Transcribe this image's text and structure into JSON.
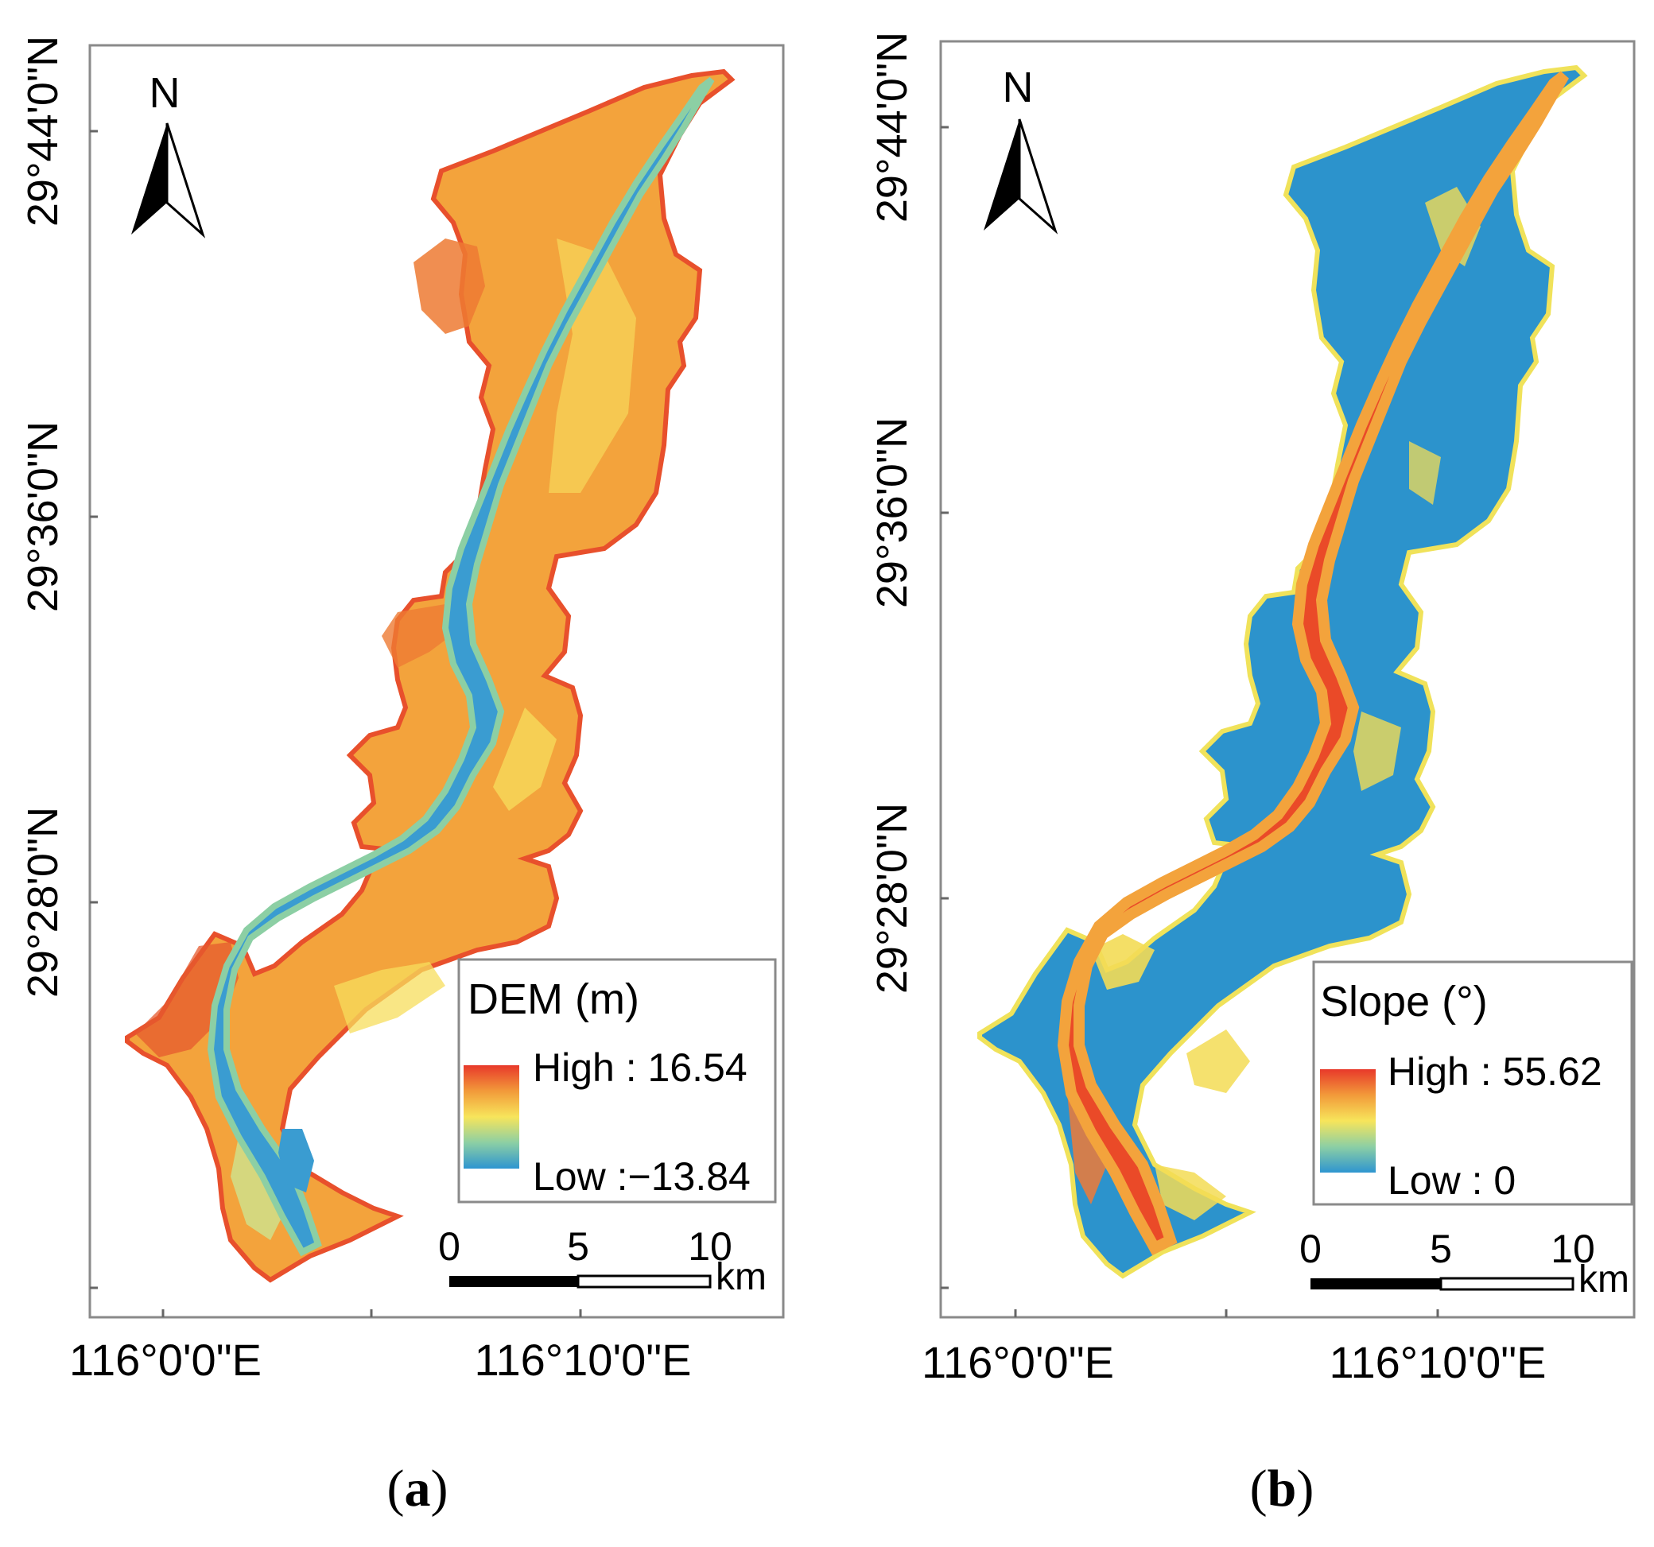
{
  "panels": [
    {
      "id": "a",
      "caption_letter": "a",
      "legend": {
        "title": "DEM (m)",
        "high": "High : 16.54",
        "low": "Low :−13.84"
      },
      "lat_labels": [
        "29°44'0\"N",
        "29°36'0\"N",
        "29°28'0\"N"
      ],
      "lon_labels": [
        "116°0'0\"E",
        "116°10'0\"E"
      ],
      "north_label": "N",
      "scale": {
        "ticks": [
          "0",
          "5",
          "10"
        ],
        "unit": "km"
      },
      "ramp_colors": [
        "#e8392a",
        "#f29a3a",
        "#f7e55b",
        "#8ccfa4",
        "#2e95d0"
      ],
      "land_color": "#f3a33c",
      "channel_color": "#3a9cd1"
    },
    {
      "id": "b",
      "caption_letter": "b",
      "legend": {
        "title": "Slope (°)",
        "high": "High : 55.62",
        "low": "Low : 0"
      },
      "lat_labels": [
        "29°44'0\"N",
        "29°36'0\"N",
        "29°28'0\"N"
      ],
      "lon_labels": [
        "116°0'0\"E",
        "116°10'0\"E"
      ],
      "north_label": "N",
      "scale": {
        "ticks": [
          "0",
          "5",
          "10"
        ],
        "unit": "km"
      },
      "ramp_colors": [
        "#e8392a",
        "#f29a3a",
        "#f7e55b",
        "#8ccfa4",
        "#2e95d0"
      ],
      "land_color": "#2c93cc",
      "channel_color": "#ea4a28"
    }
  ]
}
